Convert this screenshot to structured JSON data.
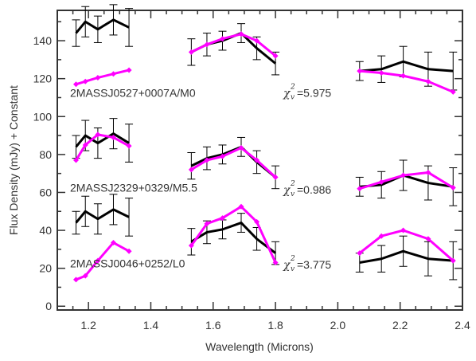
{
  "chart_data": {
    "type": "line",
    "xlabel": "Wavelength (Microns)",
    "ylabel": "Flux Density (mJy) + Constant",
    "xlim": [
      1.1,
      2.4
    ],
    "ylim": [
      -2,
      156
    ],
    "xticks": [
      1.2,
      1.4,
      1.6,
      1.8,
      2.0,
      2.2,
      2.4
    ],
    "xtick_labels": [
      "1.2",
      "1.4",
      "1.6",
      "1.8",
      "2.0",
      "2.2",
      "2.4"
    ],
    "yticks": [
      0,
      20,
      40,
      60,
      80,
      100,
      120,
      140
    ],
    "ytick_labels": [
      "0",
      "20",
      "40",
      "60",
      "80",
      "100",
      "120",
      "140"
    ],
    "grid": false,
    "legend": "none",
    "colors": {
      "observed": "#000000",
      "model": "#ff00ff",
      "axis": "#333333"
    },
    "panels": [
      {
        "object_label": "2MASSJ0527+0007A/M0",
        "chi_symbol": "χ",
        "chi_sup": "2",
        "chi_sub": "v",
        "chi_value": "=5.975",
        "observed": [
          {
            "x": [
              1.16,
              1.19,
              1.23,
              1.28,
              1.33
            ],
            "y": [
              144,
              150,
              146,
              151,
              147
            ],
            "err": [
              7,
              8,
              7,
              8,
              10
            ]
          },
          {
            "x": [
              1.53,
              1.58,
              1.63,
              1.69,
              1.74,
              1.8
            ],
            "y": [
              134,
              138,
              140,
              144,
              136,
              128
            ],
            "err": [
              7,
              6,
              5,
              5,
              6,
              6
            ]
          },
          {
            "x": [
              2.07,
              2.14,
              2.21,
              2.29,
              2.37
            ],
            "y": [
              124,
              125,
              129,
              125,
              124
            ],
            "err": [
              5,
              7,
              8,
              9,
              10
            ]
          }
        ],
        "model": [
          {
            "x": [
              1.16,
              1.19,
              1.23,
              1.28,
              1.33
            ],
            "y": [
              117,
              118.5,
              120.5,
              122.5,
              124.5
            ]
          },
          {
            "x": [
              1.53,
              1.58,
              1.63,
              1.69,
              1.74,
              1.8
            ],
            "y": [
              134,
              138,
              141,
              143.5,
              140,
              132
            ]
          },
          {
            "x": [
              2.07,
              2.14,
              2.21,
              2.29,
              2.37
            ],
            "y": [
              124,
              123,
              121.5,
              118.5,
              113
            ]
          }
        ]
      },
      {
        "object_label": "2MASSJ2329+0329/M5.5",
        "chi_symbol": "χ",
        "chi_sup": "2",
        "chi_sub": "v",
        "chi_value": "=0.986",
        "observed": [
          {
            "x": [
              1.16,
              1.19,
              1.23,
              1.28,
              1.33
            ],
            "y": [
              84,
              90,
              86,
              91,
              86
            ],
            "err": [
              6,
              8,
              8,
              8,
              10
            ]
          },
          {
            "x": [
              1.53,
              1.58,
              1.63,
              1.69,
              1.74,
              1.8
            ],
            "y": [
              74,
              78,
              80,
              84,
              76,
              68
            ],
            "err": [
              7,
              6,
              5,
              5,
              6,
              6
            ]
          },
          {
            "x": [
              2.07,
              2.14,
              2.21,
              2.29,
              2.37
            ],
            "y": [
              63,
              64,
              69,
              65,
              63
            ],
            "err": [
              5,
              7,
              8,
              9,
              10
            ]
          }
        ],
        "model": [
          {
            "x": [
              1.16,
              1.19,
              1.23,
              1.28,
              1.33
            ],
            "y": [
              77,
              85,
              90.5,
              89,
              84.5
            ]
          },
          {
            "x": [
              1.53,
              1.58,
              1.63,
              1.69,
              1.74,
              1.8
            ],
            "y": [
              72,
              77,
              79,
              83.5,
              77,
              68
            ]
          },
          {
            "x": [
              2.07,
              2.14,
              2.21,
              2.29,
              2.37
            ],
            "y": [
              62,
              65.5,
              69,
              70.5,
              62.5
            ]
          }
        ]
      },
      {
        "object_label": "2MASSJ0046+0252/L0",
        "chi_symbol": "χ",
        "chi_sup": "2",
        "chi_sub": "v",
        "chi_value": "=3.775",
        "observed": [
          {
            "x": [
              1.16,
              1.19,
              1.23,
              1.28,
              1.33
            ],
            "y": [
              44,
              50,
              46,
              51,
              47
            ],
            "err": [
              6,
              8,
              8,
              8,
              10
            ]
          },
          {
            "x": [
              1.53,
              1.58,
              1.63,
              1.69,
              1.74,
              1.8
            ],
            "y": [
              34,
              39,
              40.5,
              44,
              35.5,
              28
            ],
            "err": [
              7,
              6,
              5,
              5,
              6,
              6
            ]
          },
          {
            "x": [
              2.07,
              2.14,
              2.21,
              2.29,
              2.37
            ],
            "y": [
              23,
              25,
              29,
              25,
              24
            ],
            "err": [
              5,
              7,
              8,
              9,
              10
            ]
          }
        ],
        "model": [
          {
            "x": [
              1.16,
              1.19,
              1.23,
              1.28,
              1.33
            ],
            "y": [
              14,
              16,
              24,
              33.5,
              29
            ]
          },
          {
            "x": [
              1.53,
              1.58,
              1.63,
              1.69,
              1.74,
              1.8
            ],
            "y": [
              32,
              43.5,
              46.5,
              52.5,
              44.5,
              23
            ]
          },
          {
            "x": [
              2.07,
              2.14,
              2.21,
              2.29,
              2.37
            ],
            "y": [
              28,
              37,
              40,
              35.5,
              24
            ]
          }
        ]
      }
    ]
  }
}
